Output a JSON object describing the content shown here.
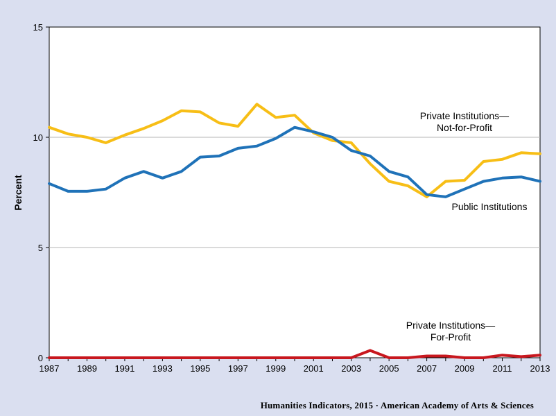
{
  "chart_data": {
    "type": "line",
    "title": "",
    "xlabel": "",
    "ylabel": "Percent",
    "xlim": [
      1987,
      2013
    ],
    "ylim": [
      0,
      15
    ],
    "y_ticks": [
      0,
      5,
      10,
      15
    ],
    "y_tick_labels": [
      "0",
      "5",
      "10",
      "15"
    ],
    "x_ticks": [
      1987,
      1989,
      1991,
      1993,
      1995,
      1997,
      1999,
      2001,
      2003,
      2005,
      2007,
      2009,
      2011,
      2013
    ],
    "x_tick_labels": [
      "1987",
      "1989",
      "1991",
      "1993",
      "1995",
      "1997",
      "1999",
      "2001",
      "2003",
      "2005",
      "2007",
      "2009",
      "2011",
      "2013"
    ],
    "grid": "horizontal",
    "x": [
      1987,
      1988,
      1989,
      1990,
      1991,
      1992,
      1993,
      1994,
      1995,
      1996,
      1997,
      1998,
      1999,
      2000,
      2001,
      2002,
      2003,
      2004,
      2005,
      2006,
      2007,
      2008,
      2009,
      2010,
      2011,
      2012,
      2013
    ],
    "series": [
      {
        "key": "public",
        "color": "#1f72b8",
        "values": [
          7.9,
          7.55,
          7.55,
          7.65,
          8.15,
          8.45,
          8.15,
          8.45,
          9.1,
          9.15,
          9.5,
          9.6,
          9.95,
          10.45,
          10.25,
          10.0,
          9.4,
          9.15,
          8.45,
          8.2,
          7.4,
          7.3,
          7.65,
          8.0,
          8.15,
          8.2,
          8.0
        ]
      },
      {
        "key": "nonprofit",
        "color": "#f7be16",
        "values": [
          10.45,
          10.15,
          10.0,
          9.75,
          10.1,
          10.4,
          10.75,
          11.2,
          11.15,
          10.65,
          10.5,
          11.5,
          10.9,
          11.0,
          10.2,
          9.85,
          9.75,
          8.8,
          8.0,
          7.8,
          7.3,
          8.0,
          8.05,
          8.9,
          9.0,
          9.3,
          9.25
        ]
      },
      {
        "key": "forprofit",
        "color": "#c8171e",
        "values": [
          0,
          0,
          0,
          0,
          0,
          0,
          0,
          0,
          0,
          0,
          0,
          0,
          0,
          0,
          0,
          0,
          0,
          0.33,
          0,
          0,
          0.08,
          0.08,
          0,
          0,
          0.12,
          0.05,
          0.12
        ]
      }
    ],
    "annotations": [
      {
        "series": "nonprofit",
        "lines": [
          "Private Institutions—",
          "Not-for-Profit"
        ]
      },
      {
        "series": "public",
        "lines": [
          "Public Institutions"
        ]
      },
      {
        "series": "forprofit",
        "lines": [
          "Private Institutions—",
          "For-Profit"
        ]
      }
    ]
  },
  "footer": "Humanities Indicators, 2015 · American Academy of Arts & Sciences"
}
